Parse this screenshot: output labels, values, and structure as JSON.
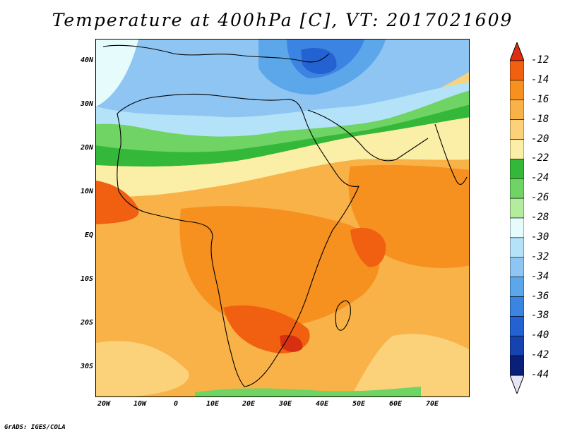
{
  "title": "Temperature at 400hPa [C], VT: 2017021609",
  "credit": "GrADS: IGES/COLA",
  "lat_labels": [
    "40N",
    "30N",
    "20N",
    "10N",
    "EQ",
    "10S",
    "20S",
    "30S"
  ],
  "lon_labels": [
    "20W",
    "10W",
    "0",
    "10E",
    "20E",
    "30E",
    "40E",
    "50E",
    "60E",
    "70E"
  ],
  "colorbar": {
    "labels": [
      "-12",
      "-14",
      "-16",
      "-18",
      "-20",
      "-22",
      "-24",
      "-26",
      "-28",
      "-30",
      "-32",
      "-34",
      "-36",
      "-38",
      "-40",
      "-42",
      "-44"
    ],
    "colors": [
      "#d62f12",
      "#f06010",
      "#f6901e",
      "#f8b248",
      "#fbd27a",
      "#fbeea6",
      "#34b83a",
      "#6fd463",
      "#b4ec9e",
      "#e6fbfb",
      "#b4e2f8",
      "#8ec5f2",
      "#5ca6ea",
      "#3b84e2",
      "#2462d2",
      "#1544b0",
      "#0a1f78"
    ],
    "top_color": "#e02c12",
    "bottom_color": "#e6e6f6"
  },
  "map_data": {
    "variable": "Temperature",
    "level": "400hPa",
    "units": "C",
    "valid_time": "2017021609"
  }
}
